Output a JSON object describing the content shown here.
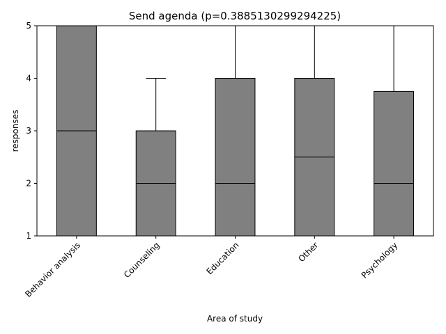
{
  "chart_data": {
    "type": "box",
    "title": "Send agenda (p=0.3885130299294225)",
    "xlabel": "Area of study",
    "ylabel": "responses",
    "ylim": [
      1,
      5
    ],
    "yticks": [
      1,
      2,
      3,
      4,
      5
    ],
    "grid": false,
    "categories": [
      "Behavior analysis",
      "Counseling",
      "Education",
      "Other",
      "Psychology"
    ],
    "boxes": [
      {
        "category": "Behavior analysis",
        "whisker_low": 1,
        "q1": 1,
        "median": 3,
        "q3": 5,
        "whisker_high": 5
      },
      {
        "category": "Counseling",
        "whisker_low": 1,
        "q1": 1,
        "median": 2,
        "q3": 3,
        "whisker_high": 4
      },
      {
        "category": "Education",
        "whisker_low": 1,
        "q1": 1,
        "median": 2,
        "q3": 4,
        "whisker_high": 5
      },
      {
        "category": "Other",
        "whisker_low": 1,
        "q1": 1,
        "median": 2.5,
        "q3": 4,
        "whisker_high": 5
      },
      {
        "category": "Psychology",
        "whisker_low": 1,
        "q1": 1,
        "median": 2,
        "q3": 3.75,
        "whisker_high": 5
      }
    ],
    "box_color": "#808080",
    "line_color": "#000000"
  }
}
